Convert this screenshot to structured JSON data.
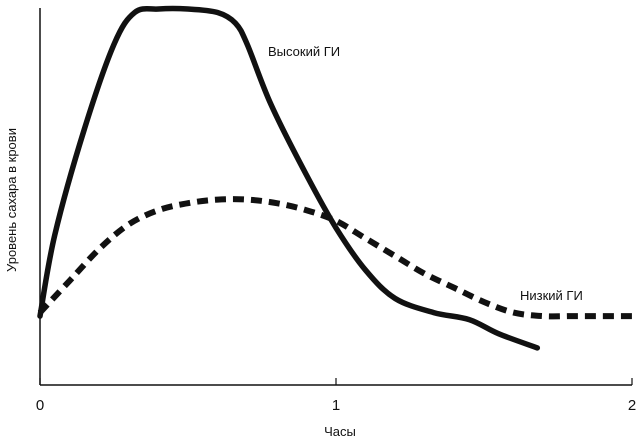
{
  "chart_data": {
    "type": "line",
    "title": "",
    "xlabel": "Часы",
    "ylabel": "Уровень сахара в крови",
    "xlim": [
      0,
      2
    ],
    "ylim": [
      0,
      1
    ],
    "xticks": [
      "0",
      "1",
      "2"
    ],
    "grid": false,
    "series": [
      {
        "name": "Высокий ГИ",
        "style": "solid",
        "color": "#111111",
        "x": [
          0.0,
          0.05,
          0.15,
          0.25,
          0.32,
          0.4,
          0.5,
          0.6,
          0.66,
          0.7,
          0.78,
          0.9,
          1.0,
          1.1,
          1.2,
          1.33,
          1.45,
          1.55,
          1.68
        ],
        "y": [
          0.13,
          0.36,
          0.66,
          0.9,
          0.99,
          1.0,
          1.0,
          0.99,
          0.96,
          0.9,
          0.73,
          0.53,
          0.38,
          0.26,
          0.18,
          0.14,
          0.12,
          0.08,
          0.04
        ]
      },
      {
        "name": "Низкий ГИ",
        "style": "dashed",
        "color": "#111111",
        "x": [
          0.0,
          0.1,
          0.2,
          0.3,
          0.4,
          0.5,
          0.6,
          0.7,
          0.8,
          0.9,
          1.0,
          1.1,
          1.2,
          1.3,
          1.4,
          1.5,
          1.6,
          1.7,
          1.8,
          1.9,
          2.0
        ],
        "y": [
          0.14,
          0.23,
          0.32,
          0.39,
          0.43,
          0.45,
          0.46,
          0.46,
          0.45,
          0.43,
          0.4,
          0.35,
          0.3,
          0.25,
          0.21,
          0.17,
          0.14,
          0.13,
          0.13,
          0.13,
          0.13
        ]
      }
    ]
  }
}
